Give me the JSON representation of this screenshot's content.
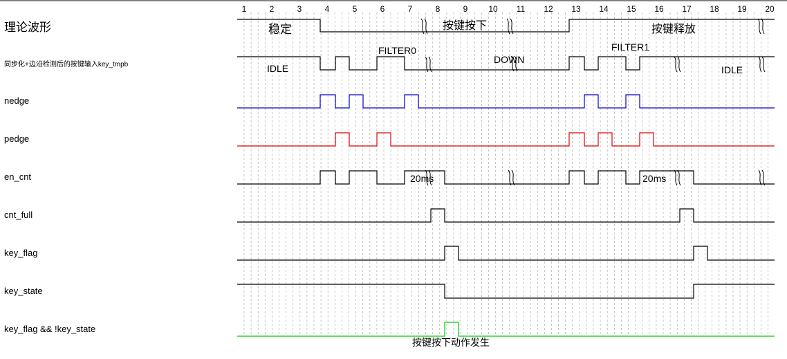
{
  "title_label": "理论波形",
  "columns": [
    "1",
    "2",
    "3",
    "4",
    "5",
    "6",
    "7",
    "8",
    "9",
    "10",
    "11",
    "12",
    "13",
    "14",
    "15",
    "16",
    "17",
    "18",
    "19",
    "20"
  ],
  "signals": [
    {
      "id": "raw",
      "label": "理论波形"
    },
    {
      "id": "key_tmpb",
      "label": "同步化+边沿检测后的按键输入key_tmpb"
    },
    {
      "id": "nedge",
      "label": "nedge",
      "color": "#0000cc"
    },
    {
      "id": "pedge",
      "label": "pedge",
      "color": "#e00000"
    },
    {
      "id": "en_cnt",
      "label": "en_cnt"
    },
    {
      "id": "cnt_full",
      "label": "cnt_full"
    },
    {
      "id": "key_flag",
      "label": "key_flag"
    },
    {
      "id": "key_state",
      "label": "key_state"
    },
    {
      "id": "key_action",
      "label": "key_flag && !key_state",
      "color": "#00cc00"
    }
  ],
  "annotations": {
    "stable": "稳定",
    "key_press": "按键按下",
    "key_release": "按键释放",
    "idle1": "IDLE",
    "filter0": "FILTER0",
    "down": "DOWN",
    "filter1": "FILTER1",
    "idle2": "IDLE",
    "ms20_1": "20ms",
    "ms20_2": "20ms",
    "action": "按键按下动作发生"
  }
}
